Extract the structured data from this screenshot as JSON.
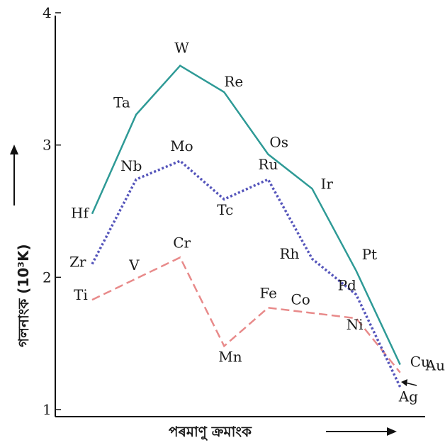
{
  "chart_data": {
    "type": "line",
    "title": "",
    "xlabel": "পৰমাণু ক্ৰমাংক",
    "ylabel": "গলনাংক (10³K)",
    "ylim": [
      1,
      4
    ],
    "yticks": [
      "1",
      "2",
      "3",
      "4"
    ],
    "grid": false,
    "x_groups": [
      3,
      4,
      5,
      6,
      7,
      8,
      9,
      10,
      11
    ],
    "series": [
      {
        "row": "3d",
        "color": "#e88a8a",
        "dash": "dashed",
        "points": [
          {
            "label": "Ti",
            "group": 4,
            "y": 1.83
          },
          {
            "label": "V",
            "group": 5,
            "y": 1.99
          },
          {
            "label": "Cr",
            "group": 6,
            "y": 2.15
          },
          {
            "label": "Mn",
            "group": 7,
            "y": 1.48
          },
          {
            "label": "Fe",
            "group": 8,
            "y": 1.77
          },
          {
            "label": "Co",
            "group": 9,
            "y": 1.73
          },
          {
            "label": "Ni",
            "group": 10,
            "y": 1.69
          },
          {
            "label": "Cu",
            "group": 11,
            "y": 1.28
          }
        ]
      },
      {
        "row": "4d",
        "color": "#5555bb",
        "dash": "dotted",
        "points": [
          {
            "label": "Zr",
            "group": 4,
            "y": 2.1
          },
          {
            "label": "Nb",
            "group": 5,
            "y": 2.74
          },
          {
            "label": "Mo",
            "group": 6,
            "y": 2.88
          },
          {
            "label": "Tc",
            "group": 7,
            "y": 2.59
          },
          {
            "label": "Ru",
            "group": 8,
            "y": 2.74
          },
          {
            "label": "Rh",
            "group": 9,
            "y": 2.14
          },
          {
            "label": "Pd",
            "group": 10,
            "y": 1.87
          },
          {
            "label": "Ag",
            "group": 11,
            "y": 1.17
          }
        ]
      },
      {
        "row": "5d",
        "color": "#2e9a96",
        "dash": "solid",
        "points": [
          {
            "label": "Hf",
            "group": 4,
            "y": 2.48
          },
          {
            "label": "Ta",
            "group": 5,
            "y": 3.23
          },
          {
            "label": "W",
            "group": 6,
            "y": 3.6
          },
          {
            "label": "Re",
            "group": 7,
            "y": 3.4
          },
          {
            "label": "Os",
            "group": 8,
            "y": 2.93
          },
          {
            "label": "Ir",
            "group": 9,
            "y": 2.67
          },
          {
            "label": "Pt",
            "group": 10,
            "y": 2.05
          },
          {
            "label": "Au",
            "group": 11,
            "y": 1.34
          }
        ]
      }
    ]
  }
}
